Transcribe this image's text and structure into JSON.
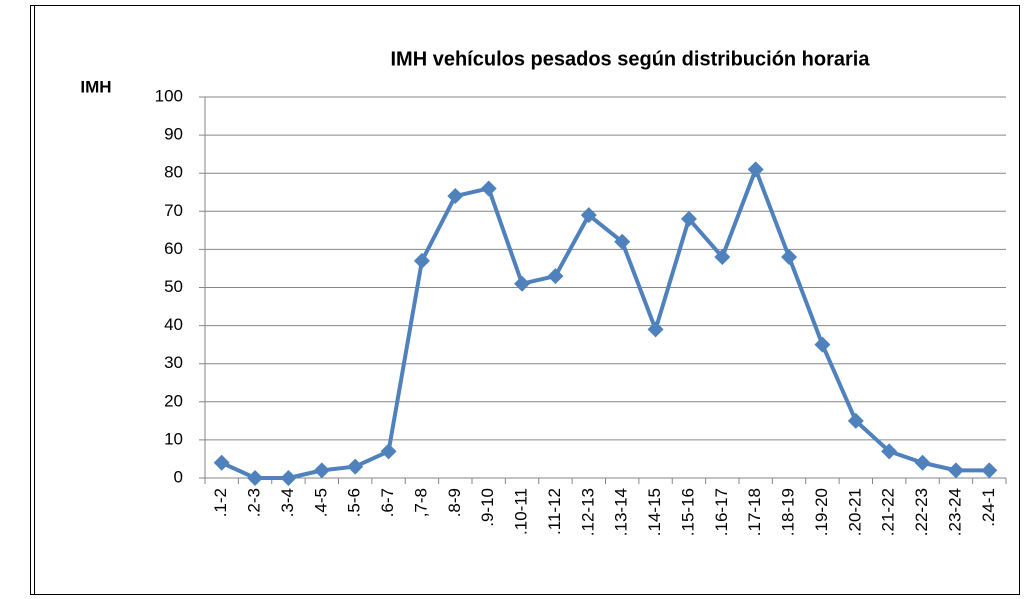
{
  "chart_data": {
    "type": "line",
    "title": "IMH vehículos pesados según distribución horaria",
    "y_label": "IMH",
    "categories": [
      ".1-2",
      ".2-3",
      ".3-4",
      ".4-5",
      ".5-6",
      ".6-7",
      ",7-8",
      ".8-9",
      ".9-10",
      ".10-11",
      ".11-12",
      ".12-13",
      ".13-14",
      ".14-15",
      ".15-16",
      ".16-17",
      ".17-18",
      ".18-19",
      ".19-20",
      ".20-21",
      ".21-22",
      ".22-23",
      ".23-24",
      ".24-1"
    ],
    "values": [
      4,
      0,
      0,
      2,
      3,
      7,
      57,
      74,
      76,
      51,
      53,
      69,
      62,
      39,
      68,
      58,
      81,
      58,
      35,
      15,
      7,
      4,
      2,
      2
    ],
    "color": "#4f81bd",
    "ylim": [
      0,
      100
    ],
    "yticks": [
      0,
      10,
      20,
      30,
      40,
      50,
      60,
      70,
      80,
      90,
      100
    ],
    "grid": true
  }
}
